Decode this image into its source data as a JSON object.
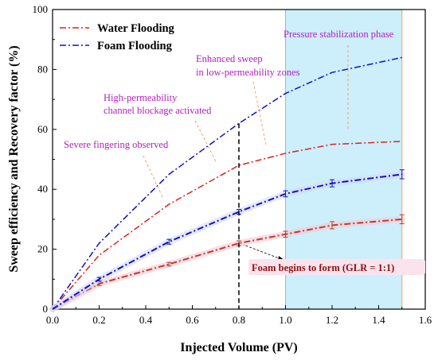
{
  "chart_data": {
    "type": "line",
    "title": "",
    "xlabel": "Injected Volume (PV)",
    "ylabel": "Sweep efficiency and Recovery factor  (%)",
    "xlim": [
      0,
      1.6
    ],
    "ylim": [
      0,
      100
    ],
    "xticks": [
      "0.0",
      "0.2",
      "0.4",
      "0.6",
      "0.8",
      "1.0",
      "1.2",
      "1.4",
      "1.6"
    ],
    "yticks": [
      "0",
      "20",
      "40",
      "60",
      "80",
      "100"
    ],
    "grid": false,
    "legend_position": "top-left",
    "legend": [
      {
        "label": "Water Flooding",
        "color": "#e0201b"
      },
      {
        "label": "Foam Flooding",
        "color": "#1010c8"
      }
    ],
    "series": [
      {
        "legend_ref": "Water Flooding",
        "metric": "sweep efficiency",
        "color": "#e0201b",
        "style": "dash-dot",
        "x": [
          0,
          0.2,
          0.5,
          0.8,
          1.0,
          1.2,
          1.5
        ],
        "y": [
          0,
          18,
          35,
          48,
          52,
          55,
          56
        ]
      },
      {
        "legend_ref": "Foam Flooding",
        "metric": "sweep efficiency",
        "color": "#1010c8",
        "style": "dash-dot",
        "x": [
          0,
          0.2,
          0.5,
          0.8,
          1.0,
          1.2,
          1.5
        ],
        "y": [
          0,
          22,
          45,
          62,
          72,
          79,
          84
        ]
      },
      {
        "legend_ref": "Water Flooding",
        "metric": "recovery factor",
        "color": "#c0392b",
        "style": "dash-dot",
        "x": [
          0,
          0.2,
          0.5,
          0.8,
          1.0,
          1.2,
          1.5
        ],
        "y": [
          0,
          8.5,
          15,
          22,
          25,
          28,
          30
        ],
        "error": [
          0,
          0.6,
          0.6,
          0.8,
          1.0,
          1.2,
          1.5
        ]
      },
      {
        "legend_ref": "Foam Flooding",
        "metric": "recovery factor",
        "color": "#1010c8",
        "style": "dash-dot",
        "x": [
          0,
          0.2,
          0.5,
          0.8,
          1.0,
          1.2,
          1.5
        ],
        "y": [
          0,
          10,
          22.5,
          32.5,
          38.5,
          42,
          45
        ],
        "error": [
          0,
          0.6,
          0.8,
          0.8,
          1.0,
          1.2,
          1.5
        ]
      }
    ],
    "shaded_region": {
      "x_start": 1.0,
      "x_end": 1.5,
      "color": "#cdeefb",
      "label": "Pressure stabilization phase"
    },
    "vertical_marker": {
      "x": 0.8,
      "y_top": 62,
      "style": "dashed",
      "color": "#000000"
    },
    "annotations": [
      {
        "text": "Severe fingering observed"
      },
      {
        "line1": "High-permeability",
        "line2": "channel blockage activated"
      },
      {
        "line1": "Enhanced sweep",
        "line2": "in low-permeability zones"
      }
    ],
    "callout": {
      "text": "Foam begins to form (GLR = 1:1)",
      "points_to": {
        "x": 0.8,
        "y": 22
      }
    }
  }
}
